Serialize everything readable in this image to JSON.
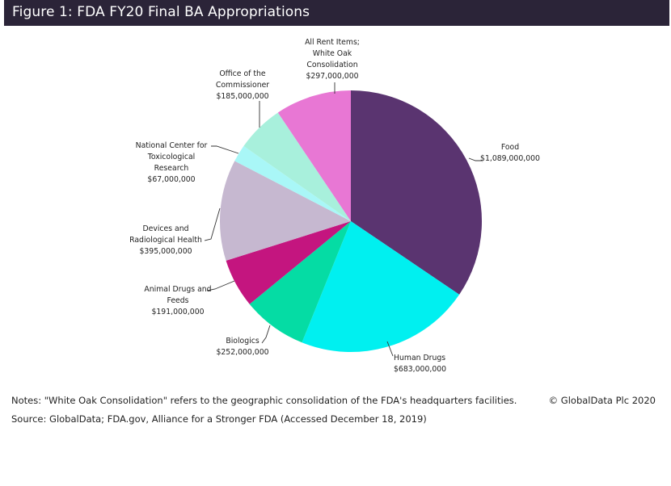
{
  "title": "Figure 1: FDA FY20 Final BA Appropriations",
  "chart_data": {
    "type": "pie",
    "title": "Figure 1: FDA FY20 Final BA Appropriations",
    "start_angle": "12 o'clock",
    "direction": "clockwise",
    "slices": [
      {
        "name": "Food",
        "label_lines": [
          "Food"
        ],
        "value": 1089000000,
        "value_label": "$1,089,000,000",
        "color": "#5a3470"
      },
      {
        "name": "Human Drugs",
        "label_lines": [
          "Human Drugs"
        ],
        "value": 683000000,
        "value_label": "$683,000,000",
        "color": "#00f0f0"
      },
      {
        "name": "Biologics",
        "label_lines": [
          "Biologics"
        ],
        "value": 252000000,
        "value_label": "$252,000,000",
        "color": "#05dca4"
      },
      {
        "name": "Animal Drugs and Feeds",
        "label_lines": [
          "Animal Drugs and",
          "Feeds"
        ],
        "value": 191000000,
        "value_label": "$191,000,000",
        "color": "#c4157f"
      },
      {
        "name": "Devices and Radiological Health",
        "label_lines": [
          "Devices and",
          "Radiological Health"
        ],
        "value": 395000000,
        "value_label": "$395,000,000",
        "color": "#c6b8d0"
      },
      {
        "name": "National Center for Toxicological Research",
        "label_lines": [
          "National Center for",
          "Toxicological",
          "Research"
        ],
        "value": 67000000,
        "value_label": "$67,000,000",
        "color": "#a9f7f7"
      },
      {
        "name": "Office of the Commissioner",
        "label_lines": [
          "Office of the",
          "Commissioner"
        ],
        "value": 185000000,
        "value_label": "$185,000,000",
        "color": "#a8f0dc"
      },
      {
        "name": "All Rent Items; White Oak Consolidation",
        "label_lines": [
          "All Rent Items;",
          "White Oak",
          "Consolidation"
        ],
        "value": 297000000,
        "value_label": "$297,000,000",
        "color": "#e877d4"
      }
    ]
  },
  "notes": "Notes: \"White Oak Consolidation\" refers to the geographic consolidation of the FDA's headquarters facilities.",
  "source": "Source: GlobalData; FDA.gov, Alliance for a Stronger FDA (Accessed December 18, 2019)",
  "copyright": "© GlobalData Plc 2020"
}
